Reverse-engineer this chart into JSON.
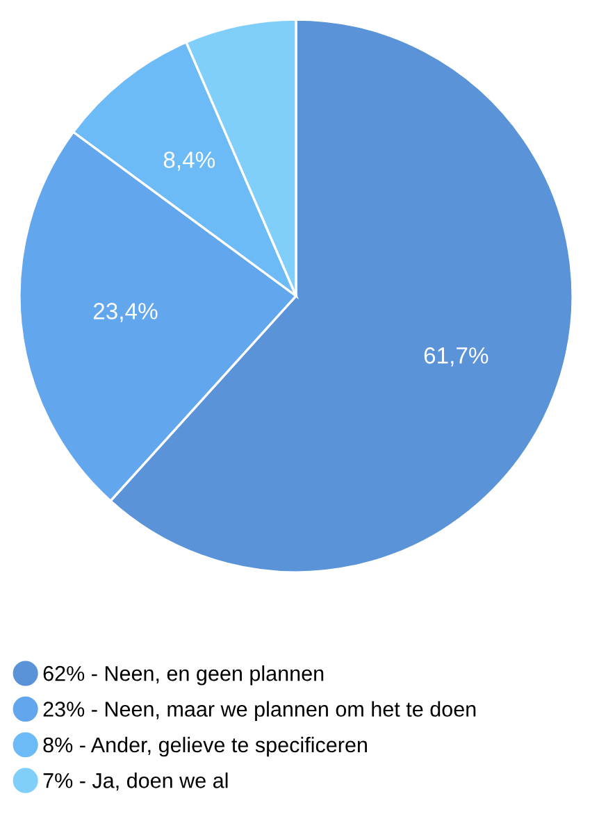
{
  "chart_data": {
    "type": "pie",
    "categories": [
      "62% - Neen, en geen plannen",
      "23% - Neen, maar we plannen om het te doen",
      "8% - Ander, gelieve te specificeren",
      "7% - Ja, doen we al"
    ],
    "values": [
      61.7,
      23.4,
      8.4,
      6.5
    ],
    "value_labels": [
      "61,7%",
      "23,4%",
      "8,4%",
      null
    ],
    "colors": [
      "#5a93d8",
      "#62a6ee",
      "#6cbaf6",
      "#80cffb"
    ],
    "legend": "bottom"
  }
}
